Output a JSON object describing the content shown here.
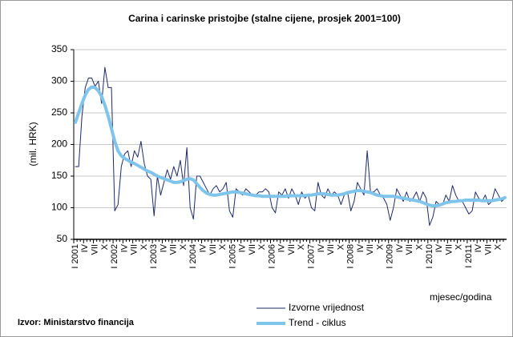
{
  "chart_data": {
    "type": "line",
    "title": "Carina i carinske pristojbe (stalne cijene, prosjek 2001=100)",
    "y_label": "(mil. HRK)",
    "x_label": "mjesec/godina",
    "source": "Izvor: Ministarstvo financija",
    "categories": [
      "I 2001",
      null,
      null,
      "IV",
      null,
      null,
      "VII",
      null,
      null,
      "X",
      null,
      null,
      "I 2002",
      null,
      null,
      "IV",
      null,
      null,
      "VII",
      null,
      null,
      "X",
      null,
      null,
      "I 2003",
      null,
      null,
      "IV",
      null,
      null,
      "VII",
      null,
      null,
      "X",
      null,
      null,
      "I 2004",
      null,
      null,
      "IV",
      null,
      null,
      "VII",
      null,
      null,
      "X",
      null,
      null,
      "I 2005",
      null,
      null,
      "IV",
      null,
      null,
      "VII",
      null,
      null,
      "X",
      null,
      null,
      "I 2006",
      null,
      null,
      "IV",
      null,
      null,
      "VII",
      null,
      null,
      "X",
      null,
      null,
      "I 2007",
      null,
      null,
      "IV",
      null,
      null,
      "VII",
      null,
      null,
      "X",
      null,
      null,
      "I 2008",
      null,
      null,
      "IV",
      null,
      null,
      "VII",
      null,
      null,
      "X",
      null,
      null,
      "I 2009",
      null,
      null,
      "IV",
      null,
      null,
      "VII",
      null,
      null,
      "X",
      null,
      null,
      "I 2010",
      null,
      null,
      "IV",
      null,
      null,
      "VII",
      null,
      null,
      "X",
      null,
      null,
      "I 2011",
      null,
      null,
      "IV",
      null,
      null,
      "VII",
      null,
      null,
      "X",
      null,
      null
    ],
    "series": [
      {
        "name": "Izvorne vrijednost",
        "color": "#1f2a6b",
        "width": 1,
        "values": [
          165,
          165,
          245,
          290,
          305,
          305,
          292,
          300,
          265,
          322,
          290,
          290,
          95,
          105,
          165,
          185,
          190,
          165,
          190,
          180,
          205,
          170,
          150,
          145,
          87,
          150,
          120,
          140,
          160,
          145,
          165,
          150,
          175,
          135,
          195,
          100,
          82,
          150,
          150,
          140,
          130,
          120,
          130,
          135,
          125,
          130,
          140,
          95,
          85,
          130,
          125,
          120,
          130,
          125,
          120,
          120,
          125,
          125,
          130,
          125,
          100,
          92,
          125,
          120,
          130,
          115,
          130,
          120,
          105,
          125,
          115,
          120,
          100,
          95,
          140,
          120,
          115,
          130,
          120,
          125,
          120,
          105,
          120,
          125,
          95,
          110,
          140,
          130,
          120,
          190,
          125,
          125,
          130,
          120,
          115,
          105,
          80,
          100,
          130,
          120,
          110,
          125,
          110,
          115,
          125,
          110,
          125,
          115,
          72,
          85,
          110,
          105,
          105,
          120,
          110,
          135,
          120,
          110,
          110,
          100,
          90,
          95,
          125,
          115,
          110,
          120,
          105,
          110,
          130,
          120,
          110,
          115
        ]
      },
      {
        "name": "Trend - ciklus",
        "color": "#7fc4ea",
        "width": 4,
        "values": [
          235,
          250,
          265,
          278,
          287,
          291,
          290,
          285,
          276,
          262,
          245,
          225,
          205,
          190,
          182,
          178,
          175,
          172,
          170,
          167,
          164,
          161,
          158,
          156,
          153,
          150,
          148,
          146,
          144,
          142,
          140,
          140,
          141,
          143,
          145,
          146,
          144,
          138,
          132,
          127,
          123,
          121,
          120,
          120,
          121,
          122,
          123,
          124,
          125,
          125,
          124,
          123,
          122,
          121,
          120,
          119,
          119,
          118,
          118,
          118,
          118,
          118,
          118,
          118,
          118,
          119,
          119,
          119,
          119,
          119,
          119,
          120,
          120,
          121,
          122,
          122,
          122,
          121,
          120,
          120,
          120,
          121,
          122,
          124,
          125,
          126,
          127,
          127,
          126,
          125,
          124,
          122,
          120,
          119,
          118,
          118,
          118,
          118,
          117,
          116,
          115,
          114,
          113,
          112,
          111,
          110,
          108,
          106,
          104,
          103,
          103,
          104,
          106,
          108,
          109,
          110,
          110,
          111,
          111,
          112,
          112,
          112,
          112,
          112,
          111,
          111,
          111,
          111,
          112,
          113,
          114,
          116
        ]
      }
    ],
    "ylim": [
      50,
      350
    ],
    "yticks": [
      50,
      100,
      150,
      200,
      250,
      300,
      350
    ],
    "grid": true
  }
}
